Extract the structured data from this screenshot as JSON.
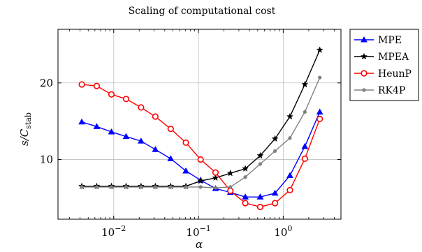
{
  "chart_data": {
    "type": "line",
    "title": "Scaling of computational cost",
    "xlabel": "α",
    "ylabel": "s/C",
    "ylabel_sub": "stab",
    "xscale": "log",
    "xlim": [
      0.0022,
      4.8
    ],
    "ylim": [
      2.2,
      27.0
    ],
    "grid": true,
    "legend_position": "outside-top-right",
    "x_ticks": [
      {
        "value": 0.01,
        "mantissa": "10",
        "exp": "−2"
      },
      {
        "value": 0.1,
        "mantissa": "10",
        "exp": "−1"
      },
      {
        "value": 1,
        "mantissa": "10",
        "exp": "0"
      }
    ],
    "y_ticks": [
      {
        "value": 10,
        "label": "10"
      },
      {
        "value": 20,
        "label": "20"
      }
    ],
    "x": [
      0.0042,
      0.0063,
      0.0094,
      0.014,
      0.021,
      0.031,
      0.047,
      0.071,
      0.106,
      0.159,
      0.238,
      0.357,
      0.535,
      0.8,
      1.2,
      1.8,
      2.7
    ],
    "series": [
      {
        "name": "MPE",
        "color": "#0000ff",
        "marker": "triangle",
        "values": [
          14.9,
          14.3,
          13.6,
          13.0,
          12.4,
          11.3,
          10.1,
          8.5,
          7.3,
          6.2,
          5.7,
          5.1,
          5.1,
          5.6,
          7.9,
          11.7,
          16.2
        ]
      },
      {
        "name": "MPEA",
        "color": "#000000",
        "marker": "star",
        "values": [
          6.5,
          6.5,
          6.5,
          6.5,
          6.5,
          6.5,
          6.5,
          6.5,
          7.2,
          7.6,
          8.2,
          8.8,
          10.5,
          12.7,
          15.6,
          19.8,
          24.3
        ]
      },
      {
        "name": "HeunP",
        "color": "#ff0000",
        "marker": "circle",
        "values": [
          19.8,
          19.6,
          18.5,
          17.9,
          16.8,
          15.6,
          14.0,
          12.2,
          10.0,
          8.3,
          5.9,
          4.3,
          3.8,
          4.3,
          6.0,
          10.1,
          15.3
        ]
      },
      {
        "name": "RK4P",
        "color": "#808080",
        "marker": "dot",
        "values": [
          6.4,
          6.4,
          6.4,
          6.4,
          6.4,
          6.4,
          6.4,
          6.4,
          6.4,
          6.3,
          6.4,
          7.7,
          9.4,
          11.1,
          12.8,
          16.2,
          20.7
        ]
      }
    ]
  }
}
